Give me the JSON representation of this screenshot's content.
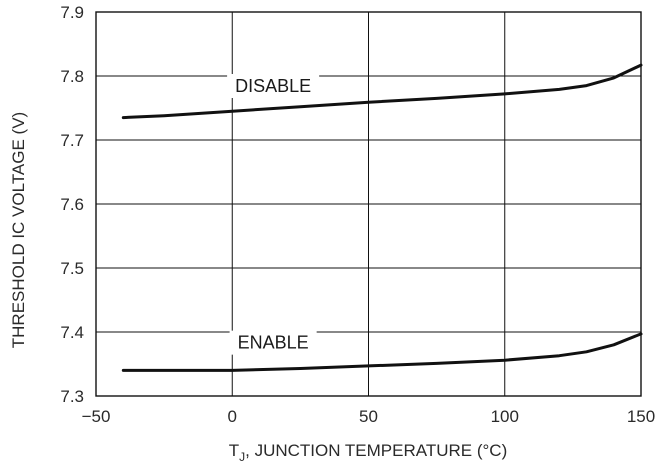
{
  "chart_data": {
    "type": "line",
    "x": [
      -40,
      -25,
      0,
      25,
      50,
      75,
      100,
      120,
      130,
      140,
      150
    ],
    "series": [
      {
        "name": "DISABLE",
        "values": [
          7.735,
          7.738,
          7.745,
          7.752,
          7.759,
          7.765,
          7.772,
          7.779,
          7.785,
          7.797,
          7.817
        ]
      },
      {
        "name": "ENABLE",
        "values": [
          7.34,
          7.34,
          7.34,
          7.343,
          7.347,
          7.351,
          7.356,
          7.363,
          7.369,
          7.38,
          7.397
        ]
      }
    ],
    "xlabel_prefix": "T",
    "xlabel_subscript": "J",
    "xlabel_rest": ", JUNCTION TEMPERATURE (°C)",
    "ylabel": "THRESHOLD IC VOLTAGE (V)",
    "xlim": [
      -50,
      150
    ],
    "ylim": [
      7.3,
      7.9
    ],
    "xticks": [
      -50,
      0,
      50,
      100,
      150
    ],
    "yticks": [
      7.3,
      7.4,
      7.5,
      7.6,
      7.7,
      7.8,
      7.9
    ],
    "xtick_labels": [
      "−50",
      "0",
      "50",
      "100",
      "150"
    ],
    "ytick_labels": [
      "7.3",
      "7.4",
      "7.5",
      "7.6",
      "7.7",
      "7.8",
      "7.9"
    ],
    "grid": true
  }
}
